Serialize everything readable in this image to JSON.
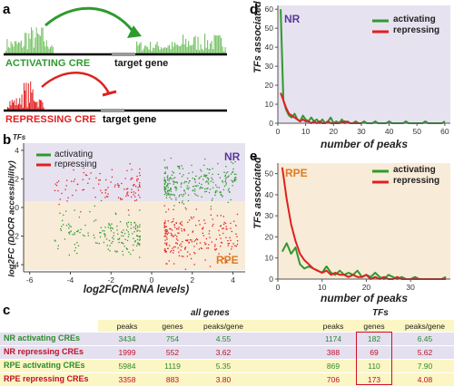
{
  "panels": {
    "a": "a",
    "b": "b",
    "c": "c",
    "d": "d",
    "e": "e"
  },
  "panel_a": {
    "activating_label": "ACTIVATING CRE",
    "repressing_label": "REPRESSING CRE",
    "target_gene_1": "target gene",
    "target_gene_2": "target gene",
    "colors": {
      "activating": "#2e9a2e",
      "repressing": "#e02020"
    }
  },
  "panel_b": {
    "nr_tag": "NR",
    "rpe_tag": "RPE",
    "legend": [
      "activating",
      "repressing"
    ],
    "ylabel": "log2FC (DOCR accessibility)",
    "xlabel": "log2FC(mRNA levels)",
    "yticks": [
      "4",
      "2",
      "0",
      "-2",
      "-4"
    ],
    "xticks": [
      "-6",
      "-4",
      "-2",
      "0",
      "2",
      "4"
    ]
  },
  "chart_data": [
    {
      "type": "line",
      "panel": "d",
      "tag": "NR",
      "xlabel": "number of peaks",
      "ylabel": "TFs associated",
      "xlim": [
        0,
        62
      ],
      "ylim": [
        0,
        62
      ],
      "xticks": [
        "0",
        "10",
        "20",
        "30",
        "40",
        "50",
        "60"
      ],
      "yticks": [
        "0",
        "10",
        "20",
        "30",
        "40",
        "50",
        "60"
      ],
      "legend_position": "top-right",
      "series": [
        {
          "name": "activating",
          "color": "#2e9a2e",
          "x": [
            1,
            2,
            3,
            4,
            5,
            6,
            7,
            8,
            9,
            10,
            11,
            12,
            13,
            14,
            15,
            16,
            17,
            18,
            19,
            20,
            21,
            22,
            23,
            24,
            25,
            26,
            27,
            28,
            29,
            30,
            31,
            32,
            33,
            34,
            35,
            36,
            37,
            38,
            39,
            40,
            41,
            42,
            43,
            44,
            45,
            46,
            47,
            48,
            49,
            50,
            51,
            52,
            53,
            54,
            55,
            56,
            57,
            58,
            59,
            60
          ],
          "y": [
            60,
            12,
            7,
            4,
            3,
            5,
            2,
            1,
            4,
            2,
            1,
            3,
            1,
            2,
            0,
            2,
            0,
            1,
            3,
            0,
            1,
            0,
            2,
            0,
            1,
            0,
            0,
            1,
            0,
            0,
            1,
            0,
            0,
            0,
            1,
            0,
            0,
            0,
            0,
            1,
            0,
            0,
            0,
            0,
            0,
            1,
            0,
            0,
            0,
            0,
            0,
            0,
            1,
            0,
            0,
            0,
            0,
            0,
            0,
            1
          ]
        },
        {
          "name": "repressing",
          "color": "#e02020",
          "x": [
            1,
            2,
            3,
            4,
            5,
            6,
            7,
            8,
            9,
            10,
            11,
            12,
            13,
            14,
            15,
            16,
            17,
            18,
            19,
            20,
            22,
            24,
            26,
            28,
            30
          ],
          "y": [
            16,
            12,
            8,
            5,
            4,
            3,
            2,
            1,
            2,
            1,
            1,
            0,
            1,
            0,
            1,
            0,
            0,
            1,
            0,
            0,
            0,
            1,
            0,
            0,
            0
          ]
        }
      ]
    },
    {
      "type": "line",
      "panel": "e",
      "tag": "RPE",
      "xlabel": "number of peaks",
      "ylabel": "TFs associated",
      "xlim": [
        0,
        39
      ],
      "ylim": [
        0,
        55
      ],
      "xticks": [
        "0",
        "10",
        "20",
        "30"
      ],
      "yticks": [
        "0",
        "10",
        "20",
        "30",
        "40",
        "50"
      ],
      "legend_position": "top-right",
      "series": [
        {
          "name": "activating",
          "color": "#2e9a2e",
          "x": [
            1,
            2,
            3,
            4,
            5,
            6,
            7,
            8,
            9,
            10,
            11,
            12,
            13,
            14,
            15,
            16,
            17,
            18,
            19,
            20,
            21,
            22,
            23,
            24,
            25,
            26,
            27,
            28,
            29,
            30,
            31,
            32,
            33,
            34,
            35,
            36,
            37,
            38
          ],
          "y": [
            13,
            17,
            12,
            15,
            7,
            5,
            6,
            5,
            4,
            3,
            6,
            3,
            2,
            4,
            2,
            3,
            2,
            4,
            1,
            2,
            1,
            3,
            1,
            0,
            2,
            1,
            0,
            1,
            0,
            0,
            1,
            0,
            0,
            0,
            0,
            0,
            0,
            1
          ]
        },
        {
          "name": "repressing",
          "color": "#e02020",
          "x": [
            1,
            2,
            3,
            4,
            5,
            6,
            7,
            8,
            9,
            10,
            11,
            12,
            13,
            14,
            15,
            16,
            17,
            18,
            19,
            20,
            21,
            22,
            23,
            24,
            25,
            26,
            27,
            28,
            29,
            30,
            31,
            32,
            33,
            34,
            35,
            36,
            37,
            38
          ],
          "y": [
            53,
            38,
            26,
            18,
            12,
            9,
            7,
            5,
            4,
            3,
            4,
            2,
            3,
            2,
            2,
            1,
            2,
            1,
            1,
            2,
            0,
            1,
            0,
            1,
            0,
            0,
            1,
            0,
            0,
            0,
            0,
            0,
            0,
            0,
            0,
            0,
            0,
            0
          ]
        }
      ]
    }
  ],
  "table": {
    "group_all": "all genes",
    "group_tfs": "TFs",
    "col_headers": [
      "peaks",
      "genes",
      "peaks/gene",
      "peaks",
      "genes",
      "peaks/gene"
    ],
    "rows": [
      {
        "label": "NR activating CREs",
        "color": "#2e8a2e",
        "values": [
          "3434",
          "754",
          "4.55",
          "1174",
          "182",
          "6.45"
        ]
      },
      {
        "label": "NR repressing CREs",
        "color": "#c0102a",
        "values": [
          "1999",
          "552",
          "3.62",
          "388",
          "69",
          "5.62"
        ]
      },
      {
        "label": "RPE activating CREs",
        "color": "#2e8a2e",
        "values": [
          "5984",
          "1119",
          "5.35",
          "869",
          "110",
          "7.90"
        ]
      },
      {
        "label": "RPE repressing CREs",
        "color": "#c0102a",
        "values": [
          "3358",
          "883",
          "3.80",
          "706",
          "173",
          "4.08"
        ]
      }
    ]
  }
}
